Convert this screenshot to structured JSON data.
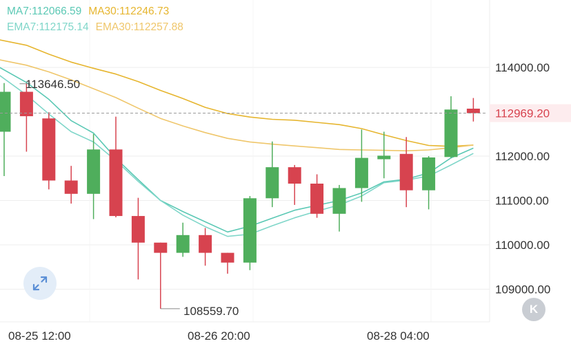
{
  "indicators": {
    "ma7": "MA7:112066.59",
    "ma30": "MA30:112246.73",
    "ema7": "EMA7:112175.14",
    "ema30": "EMA30:112257.88"
  },
  "colors": {
    "up": "#4fae5c",
    "down": "#d7434f",
    "ma7": "#5ac8b4",
    "ma30": "#e6b52e",
    "ema7": "#7fd6c9",
    "ema30": "#efc66a",
    "grid": "#eeeeee",
    "axis_text": "#333333",
    "price_text": "#d7434f",
    "price_bg": "#fdecee"
  },
  "buttons": {
    "k_label": "K"
  },
  "chart_data": {
    "type": "candlestick",
    "title": "",
    "y_ticks": [
      "114000.00",
      "112000.00",
      "111000.00",
      "110000.00",
      "109000.00"
    ],
    "x_ticks": [
      "08-25 12:00",
      "08-26 20:00",
      "08-28 04:00"
    ],
    "current_price": "112969.20",
    "high_label": "113646.50",
    "low_label": "108559.70",
    "candles": [
      {
        "o": 112550,
        "h": 113646.5,
        "l": 111550,
        "c": 113450
      },
      {
        "o": 113450,
        "h": 113646.5,
        "l": 112100,
        "c": 112900
      },
      {
        "o": 112850,
        "h": 112990,
        "l": 111250,
        "c": 111450
      },
      {
        "o": 111450,
        "h": 111780,
        "l": 110930,
        "c": 111150
      },
      {
        "o": 111150,
        "h": 112500,
        "l": 110580,
        "c": 112150
      },
      {
        "o": 112150,
        "h": 112890,
        "l": 110620,
        "c": 110650
      },
      {
        "o": 110650,
        "h": 111060,
        "l": 109220,
        "c": 110050
      },
      {
        "o": 110050,
        "h": 110050,
        "l": 108559.7,
        "c": 109820
      },
      {
        "o": 109820,
        "h": 110500,
        "l": 109730,
        "c": 110220
      },
      {
        "o": 110220,
        "h": 110380,
        "l": 109530,
        "c": 109820
      },
      {
        "o": 109820,
        "h": 109820,
        "l": 109350,
        "c": 109600
      },
      {
        "o": 109600,
        "h": 111100,
        "l": 109430,
        "c": 111050
      },
      {
        "o": 111050,
        "h": 112330,
        "l": 110850,
        "c": 111750
      },
      {
        "o": 111750,
        "h": 111800,
        "l": 110900,
        "c": 111380
      },
      {
        "o": 111380,
        "h": 111590,
        "l": 110610,
        "c": 110700
      },
      {
        "o": 110700,
        "h": 111350,
        "l": 110300,
        "c": 111280
      },
      {
        "o": 111280,
        "h": 112600,
        "l": 110970,
        "c": 111960
      },
      {
        "o": 111930,
        "h": 112550,
        "l": 111500,
        "c": 112010
      },
      {
        "o": 112050,
        "h": 112430,
        "l": 110850,
        "c": 111230
      },
      {
        "o": 111230,
        "h": 112000,
        "l": 110800,
        "c": 111970
      },
      {
        "o": 111980,
        "h": 113350,
        "l": 111960,
        "c": 113050
      },
      {
        "o": 113070,
        "h": 113310,
        "l": 112780,
        "c": 112969.2
      }
    ],
    "series": [
      {
        "name": "MA7",
        "values": [
          [
            -0.2,
            114000
          ],
          [
            1,
            113660
          ],
          [
            2,
            113280
          ],
          [
            3,
            112800
          ],
          [
            4,
            112520
          ],
          [
            5,
            111950
          ],
          [
            6,
            111470
          ],
          [
            7,
            111000
          ],
          [
            8,
            110750
          ],
          [
            9,
            110520
          ],
          [
            10,
            110290
          ],
          [
            11,
            110420
          ],
          [
            12,
            110600
          ],
          [
            13,
            110780
          ],
          [
            14,
            110890
          ],
          [
            15,
            111000
          ],
          [
            16,
            111170
          ],
          [
            17,
            111420
          ],
          [
            18,
            111480
          ],
          [
            19,
            111620
          ],
          [
            20,
            111960
          ],
          [
            21,
            112180
          ]
        ]
      },
      {
        "name": "EMA7",
        "values": [
          [
            -0.2,
            113820
          ],
          [
            1,
            113380
          ],
          [
            2,
            112950
          ],
          [
            3,
            112550
          ],
          [
            4,
            112320
          ],
          [
            5,
            111900
          ],
          [
            6,
            111430
          ],
          [
            7,
            111000
          ],
          [
            8,
            110670
          ],
          [
            9,
            110410
          ],
          [
            10,
            110190
          ],
          [
            11,
            110240
          ],
          [
            12,
            110430
          ],
          [
            13,
            110610
          ],
          [
            14,
            110760
          ],
          [
            15,
            110900
          ],
          [
            16,
            111100
          ],
          [
            17,
            111400
          ],
          [
            18,
            111460
          ],
          [
            19,
            111550
          ],
          [
            20,
            111800
          ],
          [
            21,
            112060
          ]
        ]
      },
      {
        "name": "MA30",
        "values": [
          [
            -0.2,
            114620
          ],
          [
            1,
            114500
          ],
          [
            2,
            114300
          ],
          [
            3,
            114120
          ],
          [
            4,
            113980
          ],
          [
            5,
            113850
          ],
          [
            6,
            113680
          ],
          [
            7,
            113480
          ],
          [
            8,
            113300
          ],
          [
            9,
            113100
          ],
          [
            10,
            112960
          ],
          [
            11,
            112880
          ],
          [
            12,
            112830
          ],
          [
            13,
            112810
          ],
          [
            14,
            112760
          ],
          [
            15,
            112710
          ],
          [
            16,
            112620
          ],
          [
            17,
            112480
          ],
          [
            18,
            112350
          ],
          [
            19,
            112240
          ],
          [
            20,
            112220
          ],
          [
            21,
            112250
          ]
        ]
      },
      {
        "name": "EMA30",
        "values": [
          [
            -0.2,
            114170
          ],
          [
            1,
            114050
          ],
          [
            2,
            113900
          ],
          [
            3,
            113720
          ],
          [
            4,
            113520
          ],
          [
            5,
            113320
          ],
          [
            6,
            113080
          ],
          [
            7,
            112850
          ],
          [
            8,
            112680
          ],
          [
            9,
            112530
          ],
          [
            10,
            112400
          ],
          [
            11,
            112320
          ],
          [
            12,
            112270
          ],
          [
            13,
            112230
          ],
          [
            14,
            112190
          ],
          [
            15,
            112150
          ],
          [
            16,
            112140
          ],
          [
            17,
            112130
          ],
          [
            18,
            112120
          ],
          [
            19,
            112140
          ],
          [
            20,
            112190
          ],
          [
            21,
            112250
          ]
        ]
      }
    ]
  }
}
